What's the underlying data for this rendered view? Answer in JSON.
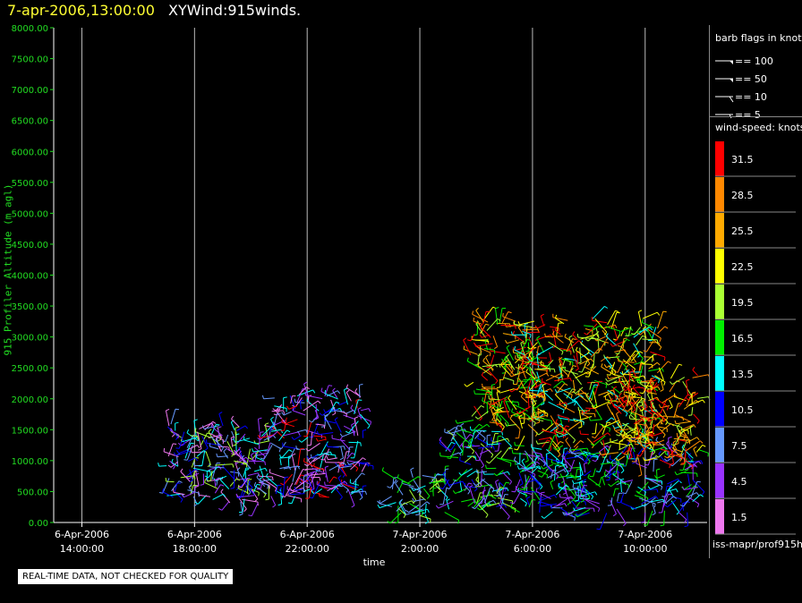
{
  "header": {
    "date": "7-apr-2006,13:00:00",
    "title": "XYWind:915winds."
  },
  "notice": "REAL-TIME DATA, NOT CHECKED FOR QUALITY",
  "footer": "iss-mapr/prof915h",
  "legend": {
    "barb_title": "barb flags in knots",
    "barbs": [
      {
        "label": "== 100",
        "kind": "flag"
      },
      {
        "label": "== 50",
        "kind": "flag"
      },
      {
        "label": "== 10",
        "kind": "full"
      },
      {
        "label": "== 5",
        "kind": "half"
      }
    ],
    "speed_title": "wind-speed: knots",
    "speed_bins": [
      {
        "label": "31.5",
        "color": "#ff0000"
      },
      {
        "label": "28.5",
        "color": "#ff8800"
      },
      {
        "label": "25.5",
        "color": "#ffaa00"
      },
      {
        "label": "22.5",
        "color": "#ffff00"
      },
      {
        "label": "19.5",
        "color": "#aaff33"
      },
      {
        "label": "16.5",
        "color": "#00ee00"
      },
      {
        "label": "13.5",
        "color": "#00ffff"
      },
      {
        "label": "10.5",
        "color": "#0000ff"
      },
      {
        "label": "7.5",
        "color": "#6699ff"
      },
      {
        "label": "4.5",
        "color": "#9933ff"
      },
      {
        "label": "1.5",
        "color": "#ee77ee"
      }
    ]
  },
  "chart_data": {
    "type": "scatter",
    "ylabel": "915 Profiler Altitude (m agl)",
    "xlabel": "time",
    "ylim": [
      0,
      8000
    ],
    "yticks": [
      "0.00",
      "500.00",
      "1000.00",
      "1500.00",
      "2000.00",
      "2500.00",
      "3000.00",
      "3500.00",
      "4000.00",
      "4500.00",
      "5000.00",
      "5500.00",
      "6000.00",
      "6500.00",
      "7000.00",
      "7500.00",
      "8000.00"
    ],
    "xlim_hours": [
      -1.0,
      22.2
    ],
    "xticks": [
      {
        "date": "6-Apr-2006",
        "time": "14:00:00",
        "hour": 0
      },
      {
        "date": "6-Apr-2006",
        "time": "18:00:00",
        "hour": 4
      },
      {
        "date": "6-Apr-2006",
        "time": "22:00:00",
        "hour": 8
      },
      {
        "date": "7-Apr-2006",
        "time": "2:00:00",
        "hour": 12
      },
      {
        "date": "7-Apr-2006",
        "time": "6:00:00",
        "hour": 16
      },
      {
        "date": "7-Apr-2006",
        "time": "10:00:00",
        "hour": 20
      }
    ],
    "grid": "vertical",
    "wind_clusters": [
      {
        "t0": 3.0,
        "t1": 6.7,
        "z0": 300,
        "z1": 1600,
        "n": 180,
        "palette": [
          "#9933ff",
          "#6699ff",
          "#ee77ee",
          "#00ffff",
          "#0000ff",
          "#aaff33"
        ]
      },
      {
        "t0": 6.7,
        "t1": 10.0,
        "z0": 400,
        "z1": 2100,
        "n": 200,
        "palette": [
          "#6699ff",
          "#9933ff",
          "#00ffff",
          "#0000ff",
          "#ee77ee",
          "#ff0000"
        ]
      },
      {
        "t0": 11.0,
        "t1": 12.9,
        "z0": 100,
        "z1": 800,
        "n": 50,
        "palette": [
          "#00ee00",
          "#00ffff",
          "#aaff33",
          "#6699ff"
        ]
      },
      {
        "t0": 12.9,
        "t1": 15.0,
        "z0": 200,
        "z1": 1500,
        "n": 110,
        "palette": [
          "#0000ff",
          "#00ffff",
          "#00ee00",
          "#6699ff",
          "#aaff33",
          "#9933ff"
        ]
      },
      {
        "t0": 13.8,
        "t1": 16.2,
        "z0": 1500,
        "z1": 3300,
        "n": 150,
        "palette": [
          "#ff0000",
          "#ff8800",
          "#ffaa00",
          "#ffff00",
          "#aaff33",
          "#00ee00"
        ]
      },
      {
        "t0": 15.5,
        "t1": 20.5,
        "z0": 1200,
        "z1": 3300,
        "n": 350,
        "palette": [
          "#ffff00",
          "#ffaa00",
          "#aaff33",
          "#00ee00",
          "#00ffff",
          "#ff8800",
          "#ff0000"
        ]
      },
      {
        "t0": 15.5,
        "t1": 21.9,
        "z0": 150,
        "z1": 1200,
        "n": 250,
        "palette": [
          "#0000ff",
          "#00ffff",
          "#6699ff",
          "#9933ff",
          "#00ee00"
        ]
      },
      {
        "t0": 19.0,
        "t1": 21.9,
        "z0": 1000,
        "z1": 2400,
        "n": 150,
        "palette": [
          "#ff8800",
          "#ffaa00",
          "#ff0000",
          "#ffff00",
          "#aaff33"
        ]
      }
    ]
  }
}
